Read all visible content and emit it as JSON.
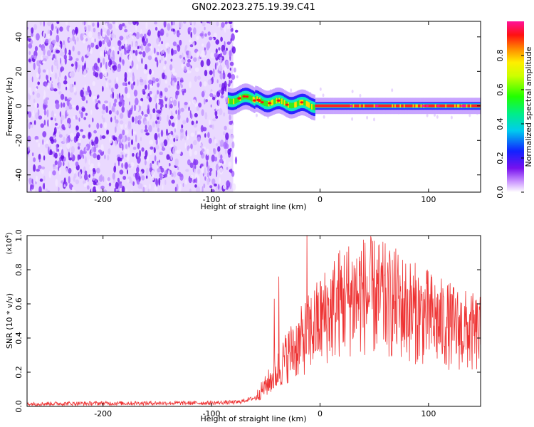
{
  "title": "GN02.2023.275.19.39.C41",
  "chart_data": [
    {
      "type": "heatmap",
      "xlabel": "Height of straight line (km)",
      "ylabel": "Frequency (Hz)",
      "xlim": [
        -270,
        148
      ],
      "ylim": [
        -50,
        49
      ],
      "xticks": [
        -200,
        -100,
        0,
        100
      ],
      "yticks": [
        -40,
        -20,
        0,
        20,
        40
      ],
      "colorbar": {
        "label": "Normalized spectral amplitude",
        "range": [
          0,
          1
        ],
        "ticks": [
          0.0,
          0.2,
          0.4,
          0.6,
          0.8
        ],
        "colormap": "rainbow (white → purple → blue → cyan → green → yellow → orange → red → magenta)"
      },
      "description_regions": [
        {
          "x_range": [
            -270,
            -80
          ],
          "freq_range": [
            -50,
            49
          ],
          "amplitude": "low (purple speckle noise)"
        },
        {
          "x_range": [
            -85,
            -5
          ],
          "freq_center": 4,
          "freq_width": 8,
          "amplitude": "medium-high (cyan/green/yellow band with red spots)"
        },
        {
          "x_range": [
            -5,
            148
          ],
          "freq_center": 0,
          "freq_width": 4,
          "amplitude": "high (narrow band, red/yellow center)"
        }
      ]
    },
    {
      "type": "line",
      "xlabel": "Height of straight line (km)",
      "ylabel": "SNR (10 * v/v)",
      "scale_label_base": "(x10",
      "scale_label_exp": "4",
      "scale_label_close": ")",
      "xlim": [
        -270,
        148
      ],
      "ylim": [
        0,
        1.0
      ],
      "xticks": [
        -200,
        -100,
        0,
        100
      ],
      "yticks": [
        0.0,
        0.2,
        0.4,
        0.6,
        0.8,
        1.0
      ],
      "series": [
        {
          "color": "#ee3333",
          "envelope_x": [
            -270,
            -200,
            -100,
            -75,
            -60,
            -50,
            -40,
            -30,
            -20,
            -10,
            0,
            10,
            20,
            30,
            40,
            50,
            60,
            70,
            80,
            90,
            100,
            110,
            120,
            130,
            140,
            148
          ],
          "envelope_y": [
            0.015,
            0.018,
            0.02,
            0.025,
            0.05,
            0.12,
            0.2,
            0.3,
            0.36,
            0.43,
            0.5,
            0.56,
            0.62,
            0.64,
            0.65,
            0.64,
            0.62,
            0.6,
            0.57,
            0.54,
            0.52,
            0.49,
            0.47,
            0.45,
            0.43,
            0.42
          ],
          "spikes": [
            {
              "x": -42,
              "y": 0.63
            },
            {
              "x": -38,
              "y": 0.76
            },
            {
              "x": -25,
              "y": 0.45
            },
            {
              "x": -12,
              "y": 1.0
            },
            {
              "x": 38,
              "y": 0.91
            },
            {
              "x": 63,
              "y": 0.78
            },
            {
              "x": 100,
              "y": 0.6
            }
          ]
        }
      ]
    }
  ]
}
